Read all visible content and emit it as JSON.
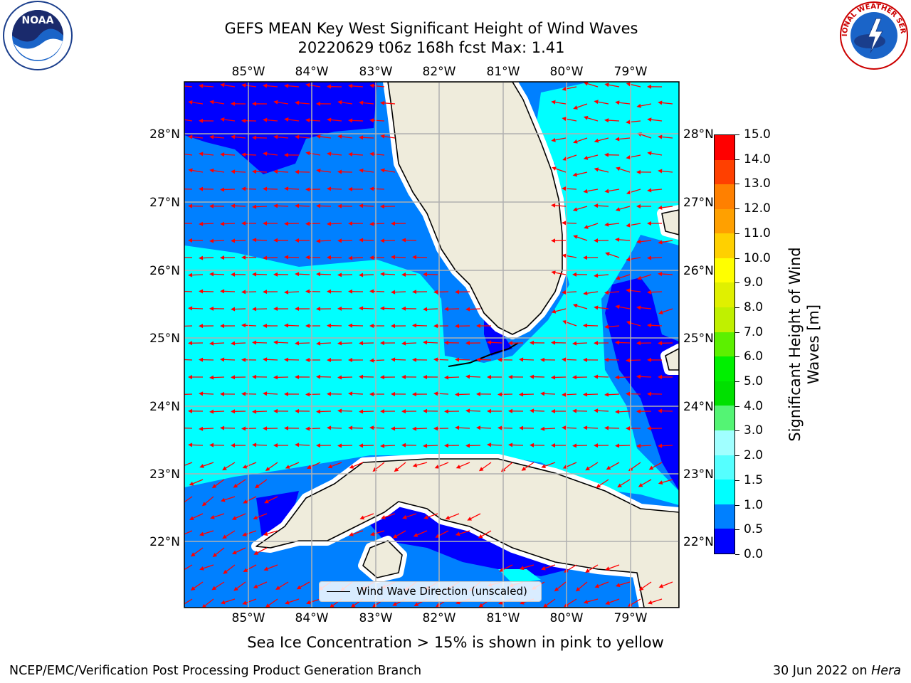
{
  "title": {
    "line1": "GEFS MEAN Key West Significant Height of Wind Waves",
    "line2": "20220629 t06z 168h fcst   Max: 1.41"
  },
  "axes": {
    "lon_labels": [
      "85°W",
      "84°W",
      "83°W",
      "82°W",
      "81°W",
      "80°W",
      "79°W"
    ],
    "lat_labels": [
      "28°N",
      "27°N",
      "26°N",
      "25°N",
      "24°N",
      "23°N",
      "22°N"
    ]
  },
  "legend": {
    "label": "Wind Wave Direction (unscaled)"
  },
  "colorbar": {
    "title": "Significant Height of Wind Waves [m]",
    "ticks": [
      "0.0",
      "0.5",
      "1.0",
      "1.5",
      "2.0",
      "3.0",
      "4.0",
      "5.0",
      "6.0",
      "7.0",
      "8.0",
      "9.0",
      "10.0",
      "11.0",
      "12.0",
      "13.0",
      "14.0",
      "15.0"
    ],
    "colors": [
      "#0000ff",
      "#0080ff",
      "#00ffff",
      "#55ffff",
      "#a0ffff",
      "#54f474",
      "#00e000",
      "#00f000",
      "#5cf000",
      "#c0f000",
      "#e0f000",
      "#ffff00",
      "#ffd000",
      "#ffa000",
      "#ff8000",
      "#ff4000",
      "#ff0000"
    ]
  },
  "colors": {
    "deep_blue": "#0000ff",
    "mid_blue": "#0080ff",
    "cyan": "#00ffff",
    "land": "#efecdc",
    "arrow": "#ff0000",
    "grid": "#b0b0b0"
  },
  "subtitle": "Sea Ice Concentration > 15% is shown in pink to yellow",
  "footer": {
    "left": "NCEP/EMC/Verification Post Processing Product Generation Branch",
    "right_prefix": "30 Jun 2022 on ",
    "right_host": "Hera"
  },
  "logos": {
    "noaa": "NOAA",
    "nws": "NATIONAL WEATHER SERVICE"
  }
}
